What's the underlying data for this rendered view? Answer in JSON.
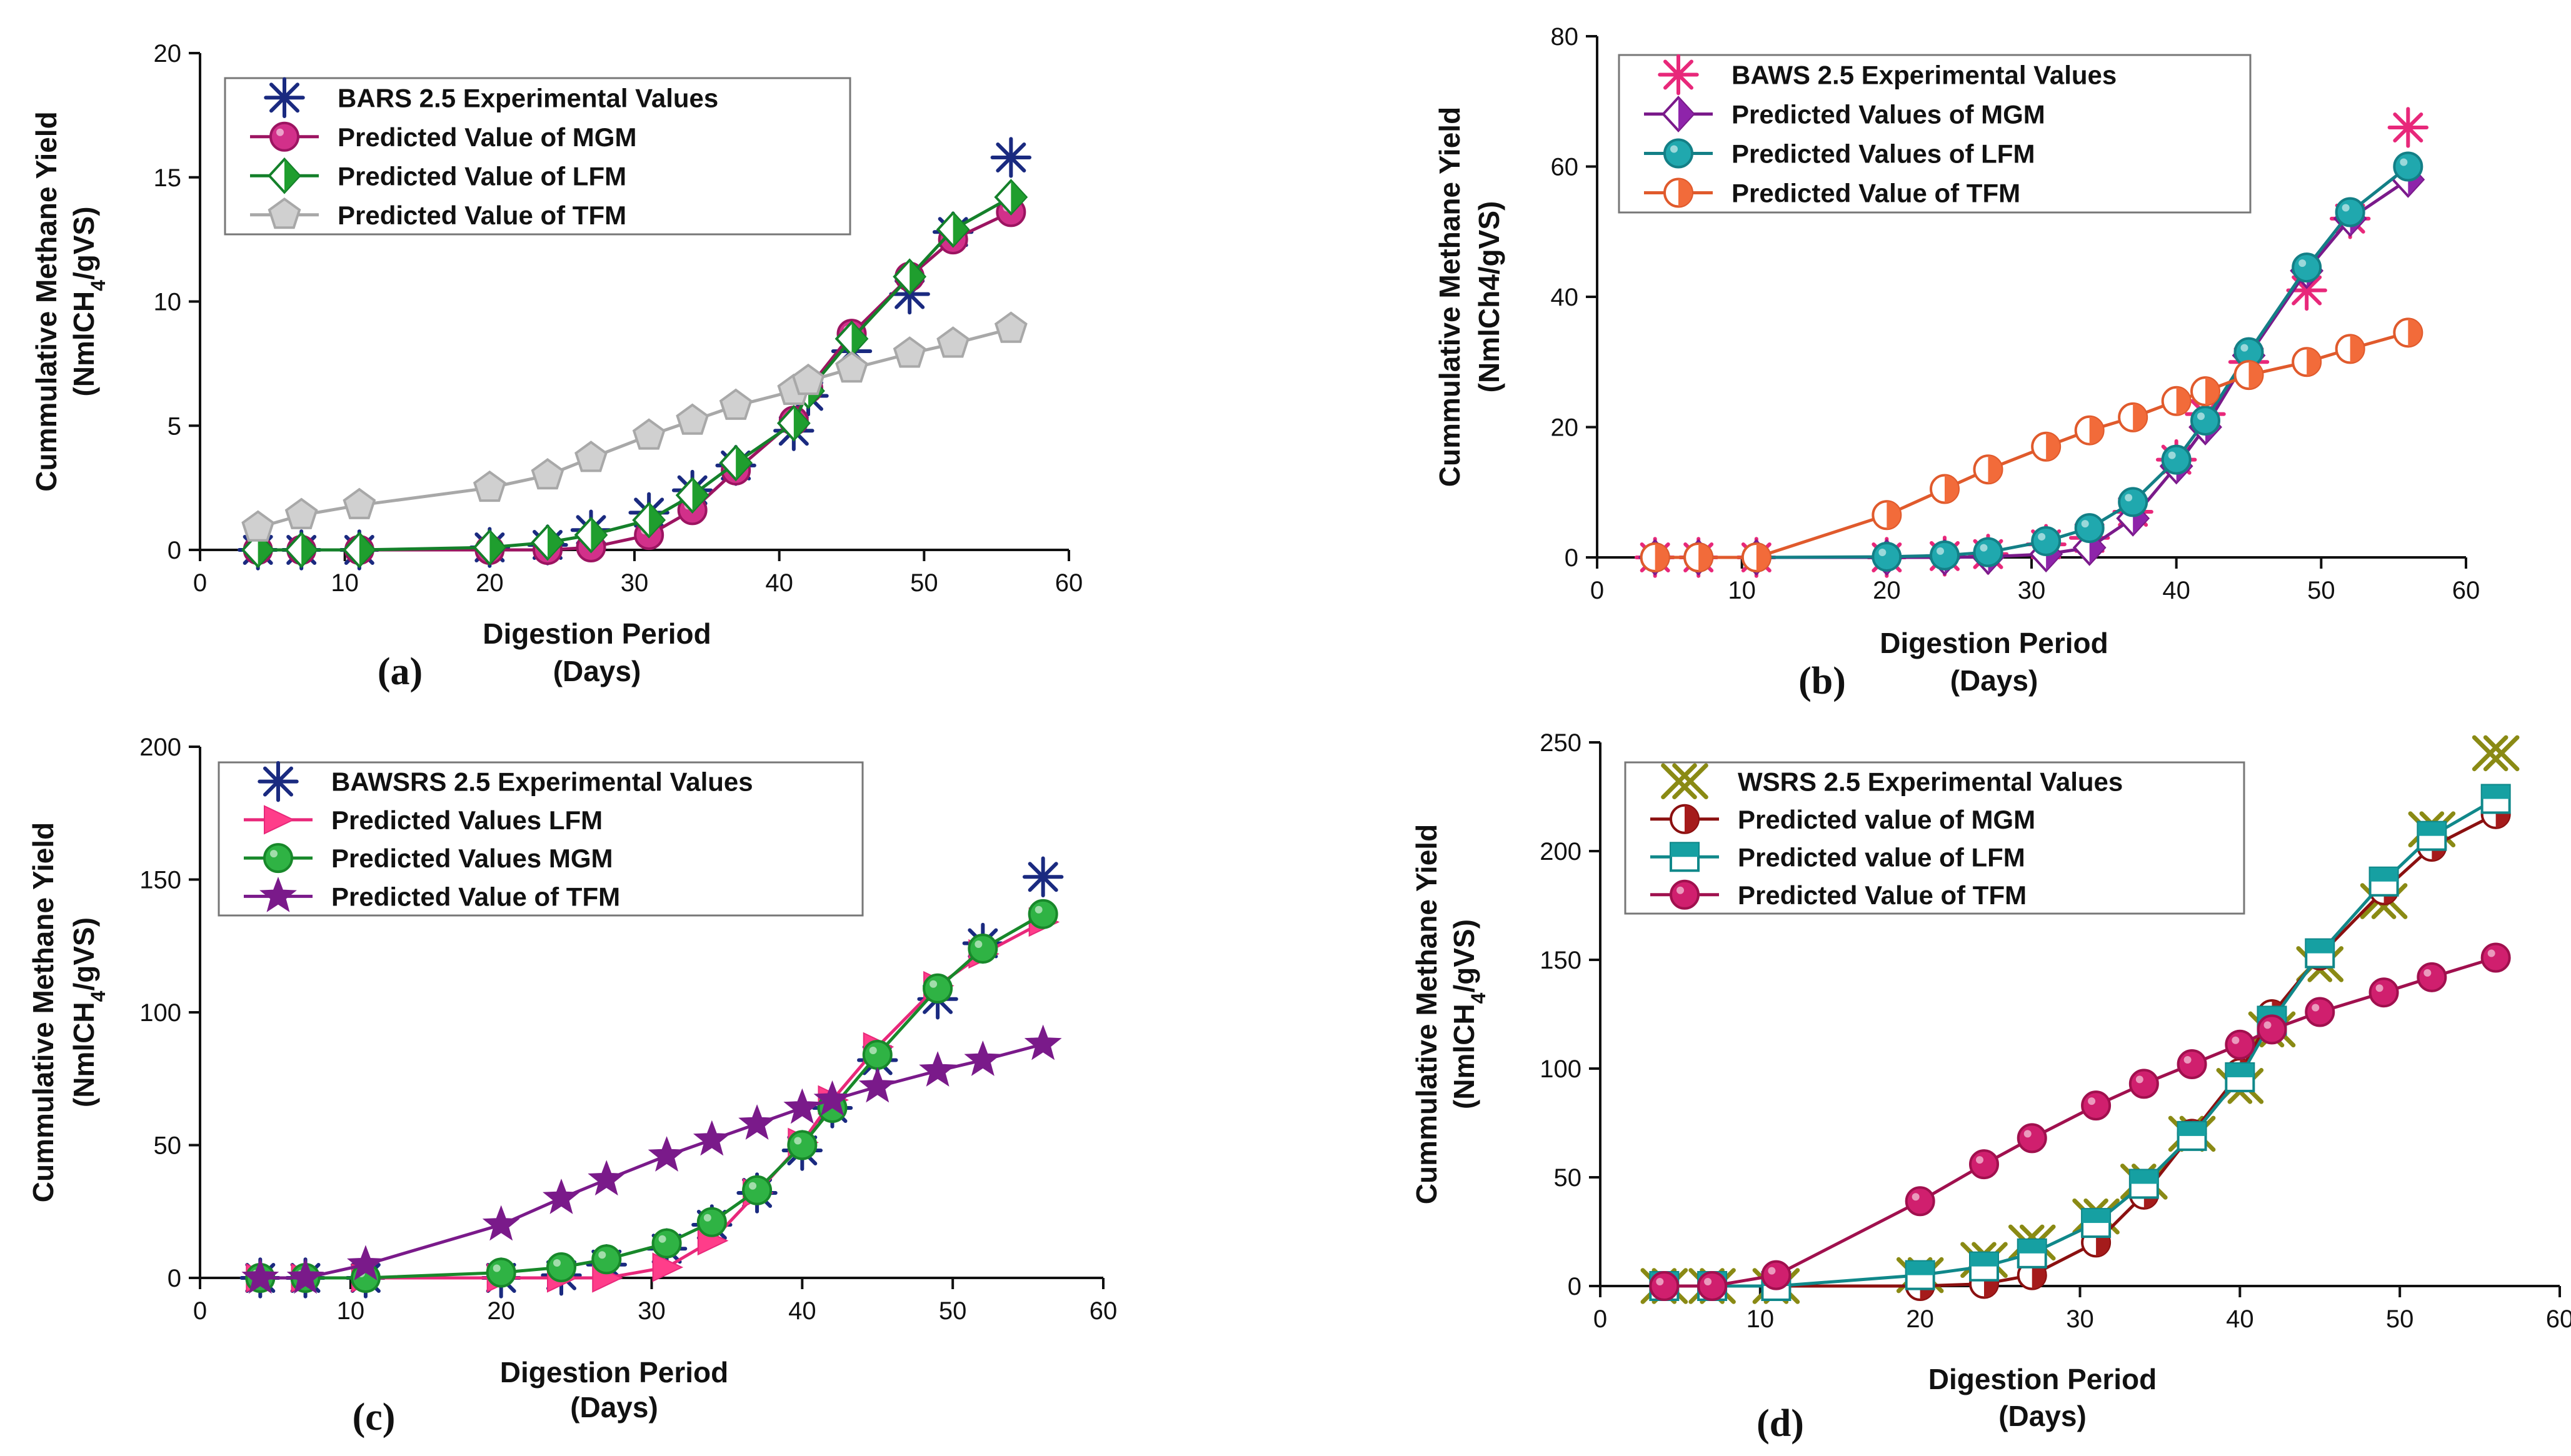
{
  "chart_data": [
    {
      "type": "line",
      "panel_label": "(a)",
      "xlabel": "Digestion Period",
      "xlabel_unit": "(Days)",
      "ylabel": "Cummulative Methane Yield",
      "ylabel_unit_parts": [
        "(NmlCH",
        "4",
        "/gVS)"
      ],
      "xlim": [
        0,
        60
      ],
      "ylim": [
        0,
        20
      ],
      "xticks": [
        0,
        10,
        20,
        30,
        40,
        50,
        60
      ],
      "yticks": [
        0,
        5,
        10,
        15,
        20
      ],
      "x": [
        4,
        7,
        11,
        20,
        24,
        27,
        31,
        34,
        37,
        41,
        42,
        45,
        49,
        52,
        56
      ],
      "series": [
        {
          "name": "BARS 2.5 Experimental Values",
          "marker": "asterisk",
          "line": false,
          "color": "#1a2a80",
          "values": [
            0,
            0,
            0,
            0.1,
            0.2,
            0.8,
            1.5,
            2.4,
            3.4,
            4.8,
            6.2,
            8.0,
            10.3,
            12.8,
            15.8
          ]
        },
        {
          "name": "Predicted Value of MGM",
          "marker": "circle",
          "line": true,
          "color": "#9c1461",
          "fill": "#d2308a",
          "values": [
            0,
            0,
            0,
            0,
            0,
            0.1,
            0.6,
            1.6,
            3.2,
            5.2,
            6.5,
            8.7,
            11.0,
            12.5,
            13.6
          ]
        },
        {
          "name": "Predicted Value of LFM",
          "marker": "diamond-half",
          "line": true,
          "color": "#14802a",
          "fill": "#1f9e2e",
          "values": [
            0,
            0,
            0,
            0.1,
            0.3,
            0.6,
            1.2,
            2.2,
            3.5,
            5.1,
            6.4,
            8.5,
            11.0,
            12.9,
            14.2
          ]
        },
        {
          "name": "Predicted Value of TFM",
          "marker": "pentagon",
          "line": true,
          "color": "#a8a8a8",
          "fill": "#d0d0d0",
          "values": [
            0.9,
            1.4,
            1.8,
            2.5,
            3.0,
            3.7,
            4.6,
            5.2,
            5.8,
            6.4,
            6.8,
            7.3,
            7.9,
            8.3,
            8.9
          ]
        }
      ]
    },
    {
      "type": "line",
      "panel_label": "(b)",
      "xlabel": "Digestion Period",
      "xlabel_unit": "(Days)",
      "ylabel": "Cummulative Methane Yield",
      "ylabel_unit_parts": [
        "(NmlCh4/gVS)"
      ],
      "xlim": [
        0,
        60
      ],
      "ylim": [
        0,
        80
      ],
      "xticks": [
        0,
        10,
        20,
        30,
        40,
        50,
        60
      ],
      "yticks": [
        0,
        20,
        40,
        60,
        80
      ],
      "x": [
        4,
        7,
        11,
        20,
        24,
        27,
        31,
        34,
        37,
        40,
        42,
        45,
        49,
        52,
        56
      ],
      "series": [
        {
          "name": "BAWS 2.5 Experimental Values",
          "marker": "asterisk",
          "line": false,
          "color": "#e8287a",
          "values": [
            0,
            0,
            0,
            0,
            0.2,
            0.5,
            2.0,
            3.0,
            7.0,
            15.0,
            22.0,
            30.0,
            41.0,
            52.0,
            66.0
          ]
        },
        {
          "name": "Predicted Values of MGM",
          "marker": "diamond-half",
          "line": true,
          "color": "#7a1a8a",
          "fill": "#8e24aa",
          "values": [
            0,
            0,
            0,
            0,
            0,
            0.1,
            0.5,
            1.5,
            6.0,
            14.0,
            20.0,
            31.0,
            44.0,
            52.0,
            58.0
          ]
        },
        {
          "name": "Predicted Values of LFM",
          "marker": "circle",
          "line": true,
          "color": "#137f86",
          "fill": "#20a8ae",
          "values": [
            0,
            0,
            0,
            0.1,
            0.3,
            0.8,
            2.5,
            4.5,
            8.5,
            15.0,
            21.0,
            31.5,
            44.5,
            53.0,
            60.0
          ]
        },
        {
          "name": "Predicted Value of TFM",
          "marker": "circle-half",
          "line": true,
          "color": "#e05a2c",
          "fill": "#f26b3a",
          "values": [
            0,
            0,
            0,
            6.5,
            10.5,
            13.5,
            17.0,
            19.5,
            21.5,
            24.0,
            25.5,
            28.0,
            30.0,
            32.0,
            34.5
          ]
        }
      ]
    },
    {
      "type": "line",
      "panel_label": "(c)",
      "xlabel": "Digestion Period",
      "xlabel_unit": "(Days)",
      "ylabel": "Cummulative Methane Yield",
      "ylabel_unit_parts": [
        "(NmlCH",
        "4",
        "/gVS)"
      ],
      "xlim": [
        0,
        60
      ],
      "ylim": [
        0,
        200
      ],
      "xticks": [
        0,
        10,
        20,
        30,
        40,
        50,
        60
      ],
      "yticks": [
        0,
        50,
        100,
        150,
        200
      ],
      "x": [
        4,
        7,
        11,
        20,
        24,
        27,
        31,
        34,
        37,
        40,
        42,
        45,
        49,
        52,
        56
      ],
      "series": [
        {
          "name": "BAWSRS 2.5 Experimental Values",
          "marker": "asterisk",
          "line": false,
          "color": "#1a2a80",
          "values": [
            0,
            0,
            0,
            0,
            1,
            5,
            11,
            20,
            32,
            48,
            64,
            82,
            105,
            126,
            151
          ]
        },
        {
          "name": "Predicted Values LFM",
          "marker": "triangle-right",
          "line": true,
          "color": "#e8287a",
          "fill": "#ff3d8a",
          "values": [
            0,
            0,
            0,
            0,
            0,
            0,
            4,
            14,
            32,
            51,
            67,
            87,
            110,
            122,
            134
          ]
        },
        {
          "name": "Predicted Values MGM",
          "marker": "circle",
          "line": true,
          "color": "#18882a",
          "fill": "#2fb344",
          "values": [
            0,
            0,
            0,
            2,
            4,
            7,
            13,
            21,
            33,
            50,
            64,
            84,
            109,
            124,
            137
          ]
        },
        {
          "name": "Predicted Value of TFM",
          "marker": "star",
          "line": true,
          "color": "#7a1a8a",
          "fill": "#7a1a8a",
          "values": [
            0,
            0,
            5,
            20,
            30,
            37,
            46,
            52,
            58,
            64,
            67,
            72,
            78,
            82,
            88
          ]
        }
      ]
    },
    {
      "type": "line",
      "panel_label": "(d)",
      "xlabel": "Digestion Period",
      "xlabel_unit": "(Days)",
      "ylabel": "Cummulative Methane Yield",
      "ylabel_unit_parts": [
        "(NmlCH",
        "4",
        "/gVS)"
      ],
      "xlim": [
        0,
        60
      ],
      "ylim": [
        0,
        250
      ],
      "xticks": [
        0,
        10,
        20,
        30,
        40,
        50,
        60
      ],
      "yticks": [
        0,
        50,
        100,
        150,
        200,
        250
      ],
      "x": [
        4,
        7,
        11,
        20,
        24,
        27,
        31,
        34,
        37,
        40,
        42,
        45,
        49,
        52,
        56
      ],
      "series": [
        {
          "name": "WSRS 2.5 Experimental Values",
          "marker": "crossed-x",
          "line": false,
          "color": "#8a8a14",
          "values": [
            0,
            0,
            0,
            5,
            12,
            20,
            32,
            48,
            70,
            92,
            118,
            148,
            177,
            210,
            245
          ]
        },
        {
          "name": "Predicted value of MGM",
          "marker": "circle-half",
          "line": true,
          "color": "#8b1010",
          "fill": "#a51b1b",
          "values": [
            0,
            0,
            0,
            0,
            1,
            5,
            20,
            42,
            70,
            98,
            125,
            152,
            182,
            202,
            217
          ]
        },
        {
          "name": "Predicted value of LFM",
          "marker": "square-half",
          "line": true,
          "color": "#10888a",
          "fill": "#16a0a2",
          "values": [
            0,
            0,
            0,
            5,
            9,
            15,
            29,
            47,
            69,
            96,
            122,
            153,
            186,
            207,
            224
          ]
        },
        {
          "name": "Predicted Value of TFM",
          "marker": "circle",
          "line": true,
          "color": "#a0104e",
          "fill": "#d01f6e",
          "values": [
            0,
            0,
            5,
            39,
            56,
            68,
            83,
            93,
            102,
            111,
            118,
            126,
            135,
            142,
            151
          ]
        }
      ]
    }
  ]
}
